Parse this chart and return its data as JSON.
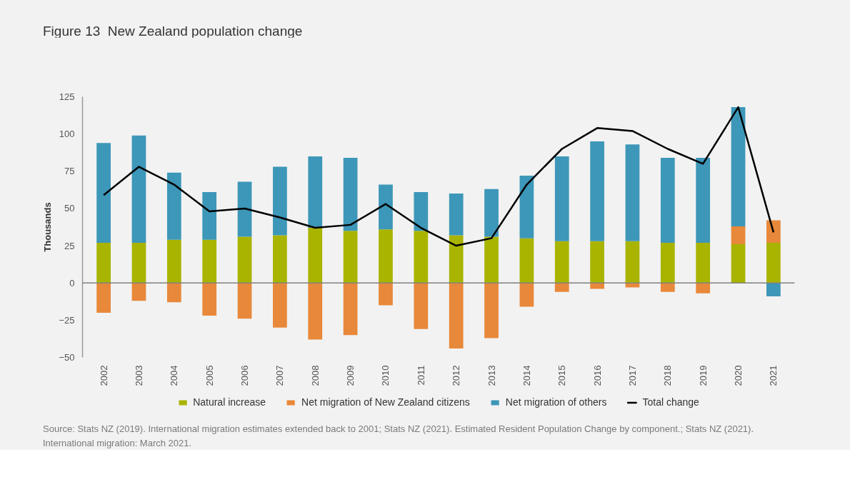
{
  "chart_data": {
    "type": "bar",
    "stacked": true,
    "title": "Figure 13  New Zealand population change",
    "ylabel": "Thousands",
    "categories": [
      "2002",
      "2003",
      "2004",
      "2005",
      "2006",
      "2007",
      "2008",
      "2009",
      "2010",
      "2011",
      "2012",
      "2013",
      "2014",
      "2015",
      "2016",
      "2017",
      "2018",
      "2019",
      "2020",
      "2021"
    ],
    "series": [
      {
        "name": "Natural increase",
        "color": "#a9b400",
        "values": [
          27,
          27,
          29,
          29,
          31,
          32,
          37,
          35,
          36,
          35,
          32,
          31,
          30,
          28,
          28,
          28,
          27,
          27,
          26,
          27
        ]
      },
      {
        "name": "Net migration of New Zealand citizens",
        "color": "#e8883a",
        "values": [
          -20,
          -12,
          -13,
          -22,
          -24,
          -30,
          -38,
          -35,
          -15,
          -31,
          -44,
          -37,
          -16,
          -6,
          -4,
          -3,
          -6,
          -7,
          12,
          15
        ]
      },
      {
        "name": "Net migration of others",
        "color": "#3d97b8",
        "values": [
          67,
          72,
          45,
          32,
          37,
          46,
          48,
          49,
          30,
          26,
          28,
          32,
          42,
          57,
          67,
          65,
          57,
          57,
          80,
          -9
        ]
      },
      {
        "name": "Total change",
        "type": "line",
        "color": "#000000",
        "values": [
          59,
          78,
          66,
          48,
          50,
          44,
          37,
          39,
          53,
          37,
          25,
          30,
          66,
          90,
          104,
          102,
          90,
          80,
          118,
          34
        ]
      }
    ],
    "ylim": [
      -50,
      125
    ],
    "yticks": [
      -50,
      -25,
      0,
      25,
      50,
      75,
      100,
      125
    ],
    "grid": false,
    "legend": "bottom",
    "ref_lines": [
      {
        "axis": "y",
        "value": 0,
        "color": "#808080"
      }
    ],
    "annotations": [
      "Source: Stats NZ (2019). International migration estimates extended back to 2001; Stats NZ (2021). Estimated Resident Population Change by component.; Stats NZ (2021). International migration: March 2021."
    ]
  }
}
